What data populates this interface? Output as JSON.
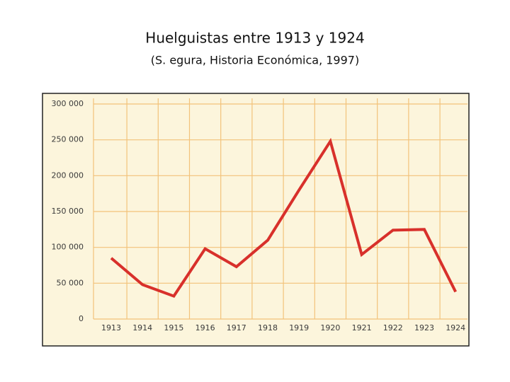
{
  "chart_data": {
    "type": "line",
    "title": "Huelguistas entre 1913 y 1924",
    "subtitle": "(S. egura, Historia Económica, 1997)",
    "categories": [
      "1913",
      "1914",
      "1915",
      "1916",
      "1917",
      "1918",
      "1919",
      "1920",
      "1921",
      "1922",
      "1923",
      "1924"
    ],
    "series": [
      {
        "name": "Huelguistas",
        "color": "#d8302b",
        "values": [
          85000,
          48000,
          32000,
          98000,
          73000,
          110000,
          180000,
          248000,
          90000,
          124000,
          125000,
          38000
        ]
      }
    ],
    "ylim": [
      0,
      300000
    ],
    "yticks": [
      0,
      {
        "value": 50000,
        "label": "50 000"
      },
      {
        "value": 100000,
        "label": "100 000"
      },
      {
        "value": 150000,
        "label": "150 000"
      },
      {
        "value": 200000,
        "label": "200 000"
      },
      {
        "value": 250000,
        "label": "250 000"
      },
      {
        "value": 300000,
        "label": "300 000"
      }
    ],
    "grid": true
  }
}
